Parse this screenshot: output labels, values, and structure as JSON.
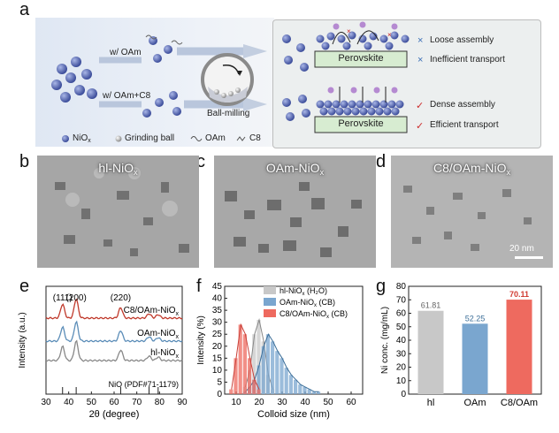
{
  "panel_labels": {
    "a": "a",
    "b": "b",
    "c": "c",
    "d": "d",
    "e": "e",
    "f": "f",
    "g": "g"
  },
  "schematic": {
    "w_oam": "w/ OAm",
    "w_oam_c8": "w/ OAm+C8",
    "ball_milling": "Ball-milling",
    "perovskite_top": "Perovskite",
    "perovskite_bottom": "Perovskite",
    "loose_assembly": "Loose assembly",
    "inefficient_transport": "Inefficient transport",
    "dense_assembly": "Dense assembly",
    "efficient_transport": "Efficient transport",
    "legend_niox": "NiO",
    "legend_niox_sub": "x",
    "legend_ball": "Grinding ball",
    "legend_oam": "OAm",
    "legend_c8": "C8",
    "mark_cross": "×",
    "mark_check": "✓"
  },
  "tem": {
    "b_label": "hl-NiO",
    "b_sub": "x",
    "c_label": "OAm-NiO",
    "c_sub": "x",
    "d_label": "C8/OAm-NiO",
    "d_sub": "x",
    "scale_bar": "20 nm"
  },
  "colors": {
    "schematic_bg": "#e8eef6",
    "result_bg": "#eef1f2",
    "np_blue": "#5a6fb8",
    "perovskite_green": "#d6ecd0",
    "xrd_top": "#c0392b",
    "xrd_mid": "#5b8db8",
    "xrd_bot": "#888888",
    "gray_bar": "#c8c8c8",
    "blue_bar": "#7aa6cf",
    "red_bar": "#ee6a5f"
  },
  "chart_data": [
    {
      "type": "line",
      "panel": "e",
      "xlabel": "2θ (degree)",
      "ylabel": "Intensity (a.u.)",
      "xlim": [
        30,
        90
      ],
      "xticks": [
        "30",
        "40",
        "50",
        "60",
        "70",
        "80",
        "90"
      ],
      "peak_labels": [
        "(111)",
        "(200)",
        "(220)"
      ],
      "series": [
        {
          "name": "C8/OAm-NiO",
          "sub": "x"
        },
        {
          "name": "OAm-NiO",
          "sub": "x"
        },
        {
          "name": "hl-NiO",
          "sub": "x"
        }
      ],
      "reference": "NiO (PDF#71-1179)",
      "reference_lines": [
        37.3,
        43.3,
        62.9,
        75.4,
        79.4
      ]
    },
    {
      "type": "bar",
      "panel": "f",
      "xlabel": "Colloid size  (nm)",
      "ylabel": "Intensity (%)",
      "xlim": [
        5,
        65
      ],
      "ylim": [
        0,
        45
      ],
      "xticks": [
        "10",
        "20",
        "30",
        "40",
        "50",
        "60"
      ],
      "yticks": [
        "0",
        "5",
        "10",
        "15",
        "20",
        "25",
        "30",
        "35",
        "40",
        "45"
      ],
      "series": [
        {
          "name": "hl-NiO",
          "sub": "x",
          "suffix": " (H₂O)",
          "x": [
            14,
            16,
            18,
            20,
            22,
            24,
            26
          ],
          "values": [
            3,
            10,
            25,
            31,
            22,
            8,
            2
          ]
        },
        {
          "name": "OAm-NiO",
          "sub": "x",
          "suffix": " (CB)",
          "x": [
            14,
            16,
            18,
            20,
            22,
            24,
            26,
            28,
            30,
            32,
            34,
            36,
            38,
            40,
            42,
            44,
            46
          ],
          "values": [
            1,
            3,
            6,
            12,
            20,
            25,
            22,
            18,
            15,
            11,
            8,
            6,
            4,
            3,
            2,
            1,
            1
          ]
        },
        {
          "name": "C8/OAm-NiO",
          "sub": "x",
          "suffix": " (CB)",
          "x": [
            8,
            10,
            12,
            14,
            16,
            18,
            20
          ],
          "values": [
            2,
            15,
            29,
            25,
            15,
            6,
            2
          ]
        }
      ]
    },
    {
      "type": "bar",
      "panel": "g",
      "xlabel": "",
      "ylabel": "Ni conc. (mg/mL)",
      "ylim": [
        0,
        80
      ],
      "yticks": [
        "0",
        "10",
        "20",
        "30",
        "40",
        "50",
        "60",
        "70",
        "80"
      ],
      "categories": [
        "hl",
        "OAm",
        "C8/OAm"
      ],
      "values": [
        61.81,
        52.25,
        70.11
      ],
      "value_labels": [
        "61.81",
        "52.25",
        "70.11"
      ]
    }
  ]
}
